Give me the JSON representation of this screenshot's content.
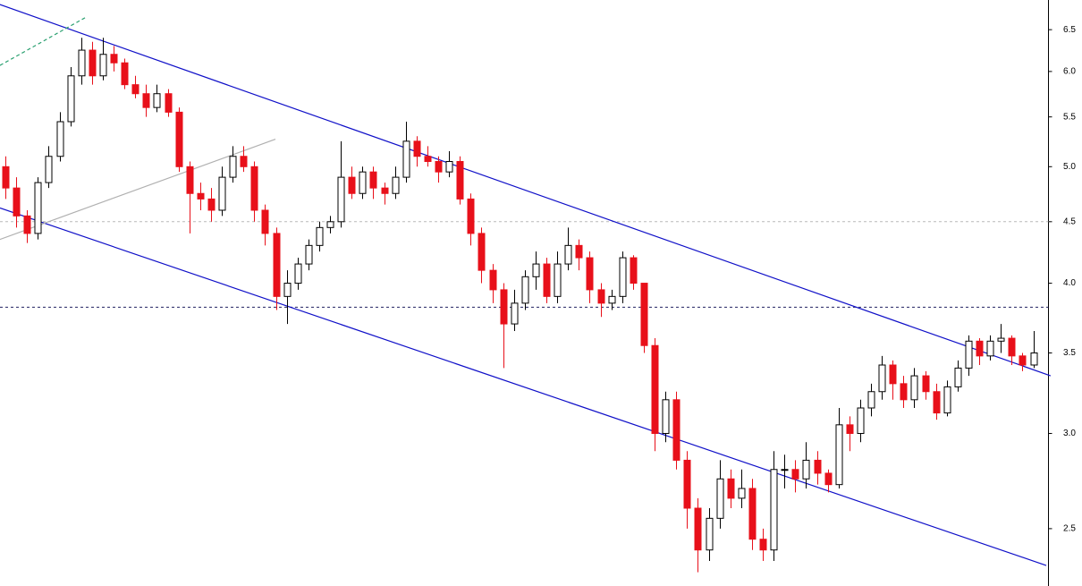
{
  "chart_data": {
    "type": "candlestick",
    "log_scale": true,
    "grid": false,
    "ylim": [
      2.24,
      6.88
    ],
    "yticks": [
      6.5,
      {
        "value": 6,
        "label": "6.0"
      },
      5.5,
      {
        "value": 5,
        "label": "5.0"
      },
      4.5,
      {
        "value": 4,
        "label": "4.0"
      },
      3.5,
      {
        "value": 3,
        "label": "3.0"
      },
      2.5
    ],
    "up_color": "#ffffff",
    "down_color": "#e8101a",
    "outline_color": "#000000",
    "open": [
      5.0,
      4.8,
      4.55,
      4.4,
      4.85,
      5.1,
      5.45,
      5.95,
      6.25,
      5.95,
      6.2,
      6.1,
      5.85,
      5.75,
      5.6,
      5.75,
      5.55,
      5.0,
      4.75,
      4.7,
      4.6,
      4.9,
      5.1,
      5.0,
      4.6,
      4.4,
      3.9,
      4.0,
      4.15,
      4.3,
      4.45,
      4.5,
      4.9,
      4.75,
      4.95,
      4.8,
      4.75,
      4.9,
      5.25,
      5.1,
      5.05,
      4.95,
      5.05,
      4.7,
      4.4,
      4.1,
      3.95,
      3.7,
      3.85,
      4.05,
      4.15,
      3.9,
      4.15,
      4.3,
      4.2,
      3.95,
      3.85,
      3.9,
      4.2,
      4.0,
      3.55,
      3.0,
      3.2,
      2.85,
      2.6,
      2.4,
      2.55,
      2.75,
      2.65,
      2.7,
      2.45,
      2.4,
      2.8,
      2.8,
      2.75,
      2.85,
      2.78,
      2.72,
      3.05,
      3.0,
      3.15,
      3.25,
      3.42,
      3.3,
      3.2,
      3.35,
      3.25,
      3.12,
      3.28,
      3.4,
      3.58,
      3.48,
      3.58,
      3.6,
      3.48,
      3.42
    ],
    "high": [
      5.1,
      4.9,
      4.6,
      4.9,
      5.2,
      5.55,
      6.05,
      6.4,
      6.35,
      6.4,
      6.3,
      6.15,
      5.95,
      5.85,
      5.85,
      5.8,
      5.6,
      5.05,
      4.85,
      4.8,
      5.0,
      5.2,
      5.2,
      5.05,
      4.65,
      4.45,
      4.1,
      4.2,
      4.35,
      4.5,
      4.55,
      5.25,
      5.0,
      5.0,
      5.0,
      4.85,
      5.0,
      5.45,
      5.3,
      5.2,
      5.1,
      5.15,
      5.1,
      4.75,
      4.45,
      4.15,
      4.0,
      3.95,
      4.1,
      4.25,
      4.2,
      4.25,
      4.45,
      4.35,
      4.25,
      4.0,
      3.95,
      4.25,
      4.22,
      4.0,
      3.6,
      3.25,
      3.25,
      2.9,
      2.65,
      2.6,
      2.85,
      2.8,
      2.8,
      2.75,
      2.5,
      2.9,
      2.88,
      2.85,
      2.95,
      2.9,
      2.8,
      3.15,
      3.1,
      3.2,
      3.3,
      3.48,
      3.45,
      3.35,
      3.4,
      3.38,
      3.3,
      3.32,
      3.45,
      3.62,
      3.6,
      3.62,
      3.7,
      3.62,
      3.5,
      3.65
    ],
    "low": [
      4.7,
      4.45,
      4.32,
      4.35,
      4.8,
      5.05,
      5.4,
      5.85,
      5.85,
      5.9,
      6.0,
      5.8,
      5.7,
      5.5,
      5.55,
      5.5,
      4.95,
      4.4,
      4.6,
      4.5,
      4.55,
      4.85,
      4.95,
      4.5,
      4.3,
      3.8,
      3.7,
      3.95,
      4.1,
      4.25,
      4.4,
      4.45,
      4.7,
      4.7,
      4.7,
      4.65,
      4.7,
      4.85,
      5.0,
      5.0,
      4.85,
      4.9,
      4.65,
      4.3,
      4.0,
      3.85,
      3.4,
      3.65,
      3.8,
      3.95,
      3.85,
      3.85,
      4.1,
      4.1,
      3.85,
      3.75,
      3.8,
      3.85,
      3.95,
      3.5,
      2.9,
      2.95,
      2.8,
      2.5,
      2.3,
      2.35,
      2.5,
      2.6,
      2.6,
      2.4,
      2.35,
      2.35,
      2.7,
      2.68,
      2.7,
      2.72,
      2.68,
      2.7,
      2.9,
      2.95,
      3.1,
      3.2,
      3.2,
      3.15,
      3.15,
      3.2,
      3.08,
      3.1,
      3.25,
      3.35,
      3.42,
      3.45,
      3.5,
      3.42,
      3.38,
      3.4
    ],
    "close": [
      4.8,
      4.55,
      4.4,
      4.85,
      5.1,
      5.45,
      5.95,
      6.25,
      5.95,
      6.2,
      6.1,
      5.85,
      5.75,
      5.6,
      5.75,
      5.55,
      5.0,
      4.75,
      4.7,
      4.6,
      4.9,
      5.1,
      5.0,
      4.6,
      4.4,
      3.9,
      4.0,
      4.15,
      4.3,
      4.45,
      4.5,
      4.9,
      4.75,
      4.95,
      4.8,
      4.75,
      4.9,
      5.25,
      5.1,
      5.05,
      4.95,
      5.05,
      4.7,
      4.4,
      4.1,
      3.95,
      3.7,
      3.85,
      4.05,
      4.15,
      3.9,
      4.15,
      4.3,
      4.2,
      3.95,
      3.85,
      3.9,
      4.2,
      4.0,
      3.55,
      3.0,
      3.2,
      2.85,
      2.6,
      2.4,
      2.55,
      2.75,
      2.65,
      2.7,
      2.45,
      2.4,
      2.8,
      2.8,
      2.75,
      2.85,
      2.78,
      2.72,
      3.05,
      3.0,
      3.15,
      3.25,
      3.42,
      3.3,
      3.2,
      3.35,
      3.25,
      3.12,
      3.28,
      3.4,
      3.58,
      3.48,
      3.58,
      3.6,
      3.48,
      3.42,
      3.5
    ],
    "trend_lines": [
      {
        "color": "#1010c8",
        "x": [
          -0.5,
          96.6
        ],
        "values": [
          6.82,
          3.35
        ]
      },
      {
        "color": "#1010c8",
        "x": [
          -0.5,
          96.2
        ],
        "values": [
          4.62,
          2.33
        ]
      },
      {
        "color": "#b0b0b0",
        "x": [
          -0.5,
          24.96
        ],
        "values": [
          4.35,
          5.27
        ]
      },
      {
        "color": "#2aa070",
        "dashed": true,
        "x": [
          -0.5,
          7.36
        ],
        "values": [
          6.07,
          6.65
        ]
      }
    ],
    "horizontal_lines": [
      {
        "value": 4.5,
        "color": "#b8b8b8",
        "dashed": true
      },
      {
        "value": 3.82,
        "color": "#202060",
        "dashed": true
      }
    ]
  }
}
